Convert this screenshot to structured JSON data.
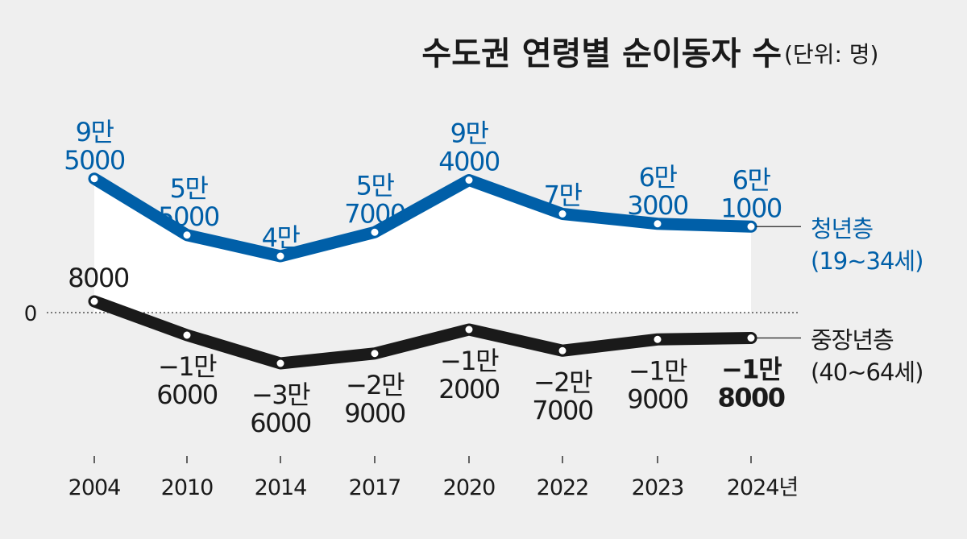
{
  "chart_data": {
    "type": "line",
    "title": "수도권 연령별 순이동자 수",
    "unit": "(단위: 명)",
    "zero_label": "0",
    "categories": [
      "2004",
      "2010",
      "2014",
      "2017",
      "2020",
      "2022",
      "2023",
      "2024년"
    ],
    "series": [
      {
        "name": "청년층",
        "range": "(19~34세)",
        "color": "#005fa8",
        "values": [
          95000,
          55000,
          40000,
          57000,
          94000,
          70000,
          63000,
          61000
        ],
        "labels": [
          [
            "9만",
            "5000"
          ],
          [
            "5만",
            "5000"
          ],
          [
            "4만"
          ],
          [
            "5만",
            "7000"
          ],
          [
            "9만",
            "4000"
          ],
          [
            "7만"
          ],
          [
            "6만",
            "3000"
          ],
          [
            "6만",
            "1000"
          ]
        ]
      },
      {
        "name": "중장년층",
        "range": "(40~64세)",
        "color": "#1a1a1a",
        "values": [
          8000,
          -16000,
          -36000,
          -29000,
          -12000,
          -27000,
          -19000,
          -18000
        ],
        "labels": [
          [
            "8000"
          ],
          [
            "−1만",
            "6000"
          ],
          [
            "−3만",
            "6000"
          ],
          [
            "−2만",
            "9000"
          ],
          [
            "−1만",
            "2000"
          ],
          [
            "−2만",
            "7000"
          ],
          [
            "−1만",
            "9000"
          ],
          [
            "−1만",
            "8000"
          ]
        ]
      }
    ]
  }
}
